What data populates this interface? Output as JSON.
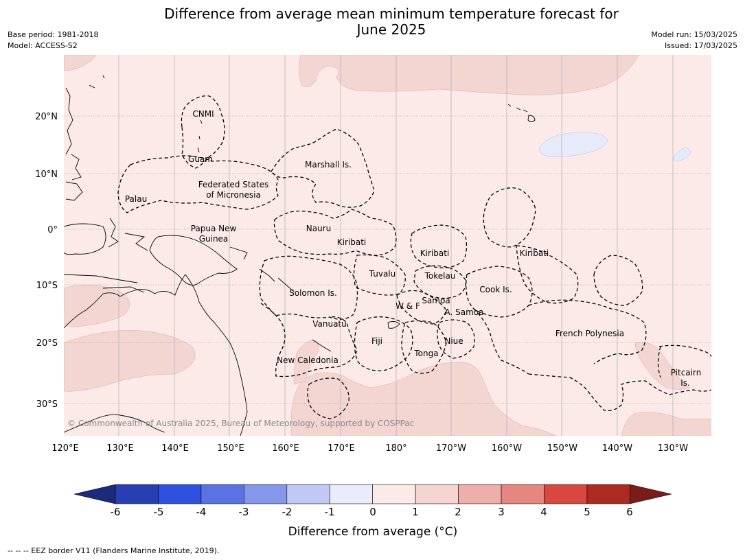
{
  "title": {
    "line1": "Difference from average mean minimum temperature forecast for",
    "line2": "June 2025"
  },
  "meta": {
    "base_period": "Base period: 1981-2018",
    "model": "Model: ACCESS-S2",
    "model_run": "Model run: 15/03/2025",
    "issued": "Issued: 17/03/2025"
  },
  "map": {
    "lon_ticks": [
      "120°E",
      "130°E",
      "140°E",
      "150°E",
      "160°E",
      "170°E",
      "180°",
      "170°W",
      "160°W",
      "150°W",
      "140°W",
      "130°W"
    ],
    "lat_ticks": [
      "20°N",
      "10°N",
      "0°",
      "10°S",
      "20°S",
      "30°S"
    ],
    "colors": {
      "ocean_base": "#fbeae8",
      "warm_1_2": "#f3d5d2",
      "cool_0_-1": "#e6ebfa",
      "land_outline": "#000000",
      "eez": "#000000"
    },
    "regions": [
      {
        "name": "CNMI"
      },
      {
        "name": "Guam"
      },
      {
        "name": "Palau"
      },
      {
        "name": "Federated States"
      },
      {
        "name": "of Micronesia"
      },
      {
        "name": "Marshall Is."
      },
      {
        "name": "Papua New"
      },
      {
        "name": "Guinea"
      },
      {
        "name": "Nauru"
      },
      {
        "name": "Kiribati"
      },
      {
        "name": "Kiribati"
      },
      {
        "name": "Kiribati"
      },
      {
        "name": "Tuvalu"
      },
      {
        "name": "Tokelau"
      },
      {
        "name": "Solomon Is."
      },
      {
        "name": "Cook Is."
      },
      {
        "name": "W & F"
      },
      {
        "name": "Samoa"
      },
      {
        "name": "A. Samoa"
      },
      {
        "name": "Vanuatu"
      },
      {
        "name": "Fiji"
      },
      {
        "name": "Niue"
      },
      {
        "name": "French Polynesia"
      },
      {
        "name": "Tonga"
      },
      {
        "name": "New Caledonia"
      },
      {
        "name": "Pitcairn"
      },
      {
        "name": "Is."
      }
    ],
    "copyright": "© Commonwealth of Australia 2025, Bureau of Meteorology, supported by COSPPac"
  },
  "colorbar": {
    "colors": [
      "#1c2a7c",
      "#273fb3",
      "#2f51e0",
      "#5b72e4",
      "#8597ea",
      "#c0c9f3",
      "#e8ecfb",
      "#fbeae8",
      "#f6d4d2",
      "#eeaeaa",
      "#e5867f",
      "#d94840",
      "#ad2a22",
      "#7a1d18"
    ],
    "ticks": [
      "-6",
      "-5",
      "-4",
      "-3",
      "-2",
      "-1",
      "0",
      "1",
      "2",
      "3",
      "4",
      "5",
      "6"
    ],
    "label": "Difference from average (°C)"
  },
  "footer": "--  --  -- EEZ border V11 (Flanders Marine Institute, 2019)."
}
